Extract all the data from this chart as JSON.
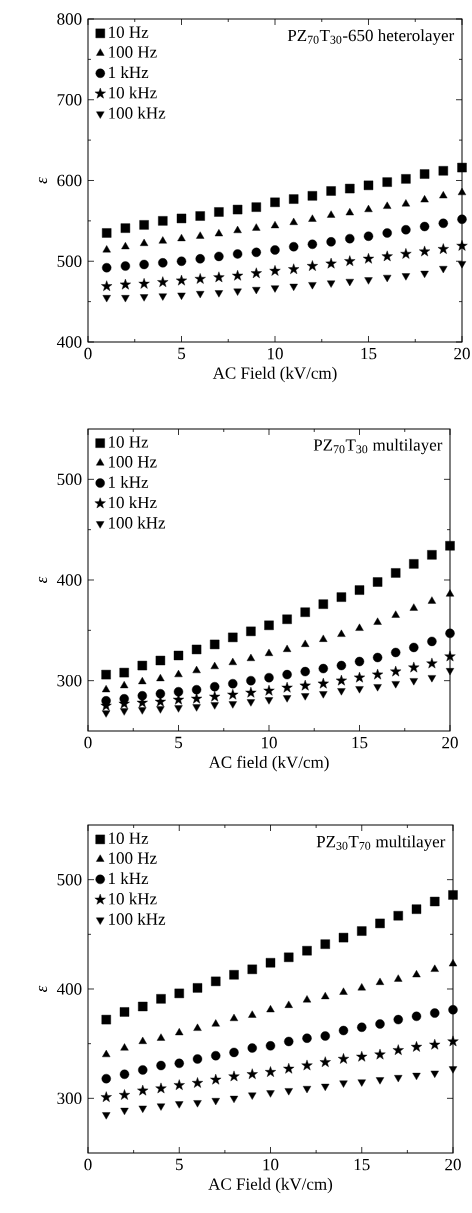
{
  "chart_data": [
    {
      "type": "scatter",
      "xlabel": "AC Field (kV/cm)",
      "ylabel": "ε",
      "xlim": [
        0,
        20
      ],
      "xticks": [
        0,
        5,
        10,
        15,
        20
      ],
      "ylim": [
        400,
        800
      ],
      "yticks": [
        400,
        500,
        600,
        700,
        800
      ],
      "legend": "top left",
      "annotations": [
        "PZ$_{70}$T$_{30}$-650 heterolayer"
      ],
      "x": [
        1,
        2,
        3,
        4,
        5,
        6,
        7,
        8,
        9,
        10,
        11,
        12,
        13,
        14,
        15,
        16,
        17,
        18,
        19,
        20
      ],
      "series": [
        {
          "name": "10 Hz",
          "color": "#000000",
          "marker": "square",
          "values": [
            535,
            541,
            545,
            550,
            553,
            556,
            561,
            564,
            567,
            573,
            577,
            581,
            587,
            590,
            594,
            598,
            602,
            608,
            612,
            616
          ]
        },
        {
          "name": "100 Hz",
          "color": "#000000",
          "marker": "triangle",
          "values": [
            514,
            518,
            522,
            525,
            528,
            531,
            534,
            538,
            541,
            544,
            548,
            552,
            557,
            560,
            564,
            568,
            571,
            576,
            581,
            585
          ]
        },
        {
          "name": "1 kHz",
          "color": "#000000",
          "marker": "circle",
          "values": [
            492,
            494,
            496,
            498,
            500,
            503,
            506,
            509,
            511,
            514,
            518,
            521,
            524,
            528,
            531,
            535,
            539,
            543,
            547,
            552
          ]
        },
        {
          "name": "10 kHz",
          "color": "#000000",
          "marker": "star",
          "values": [
            469,
            471,
            472,
            474,
            476,
            478,
            480,
            482,
            485,
            488,
            490,
            494,
            497,
            500,
            503,
            506,
            509,
            512,
            515,
            519
          ]
        },
        {
          "name": "100 kHz",
          "color": "#000000",
          "marker": "triangle-down",
          "values": [
            455,
            455,
            456,
            457,
            458,
            460,
            461,
            463,
            465,
            467,
            469,
            471,
            473,
            475,
            477,
            480,
            482,
            485,
            491,
            497
          ]
        }
      ]
    },
    {
      "type": "scatter",
      "xlabel": "AC field (kV/cm)",
      "ylabel": "ε",
      "xlim": [
        0,
        20
      ],
      "xticks": [
        0,
        5,
        10,
        15,
        20
      ],
      "ylim": [
        250,
        550
      ],
      "yticks": [
        300,
        400,
        500
      ],
      "legend": "top left",
      "annotations": [
        "PZ$_{70}$T$_{30}$ multilayer"
      ],
      "x": [
        1,
        2,
        3,
        4,
        5,
        6,
        7,
        8,
        9,
        10,
        11,
        12,
        13,
        14,
        15,
        16,
        17,
        18,
        19,
        20
      ],
      "series": [
        {
          "name": "10 Hz",
          "color": "#000000",
          "marker": "square",
          "values": [
            306,
            308,
            315,
            320,
            325,
            331,
            336,
            343,
            349,
            355,
            361,
            368,
            376,
            383,
            390,
            398,
            407,
            416,
            425,
            434
          ]
        },
        {
          "name": "100 Hz",
          "color": "#000000",
          "marker": "triangle",
          "values": [
            291,
            295,
            299,
            302,
            306,
            310,
            314,
            318,
            322,
            327,
            331,
            336,
            341,
            346,
            352,
            358,
            365,
            372,
            379,
            386
          ]
        },
        {
          "name": "1 kHz",
          "color": "#000000",
          "marker": "circle",
          "values": [
            280,
            282,
            285,
            287,
            289,
            291,
            294,
            297,
            300,
            303,
            306,
            309,
            312,
            315,
            319,
            323,
            328,
            333,
            339,
            347
          ]
        },
        {
          "name": "10 kHz",
          "color": "#000000",
          "marker": "star",
          "values": [
            275,
            277,
            278,
            279,
            281,
            282,
            284,
            286,
            288,
            290,
            293,
            295,
            297,
            300,
            303,
            306,
            309,
            313,
            317,
            324
          ]
        },
        {
          "name": "100 kHz",
          "color": "#000000",
          "marker": "triangle-down",
          "values": [
            268,
            270,
            271,
            272,
            273,
            274,
            276,
            277,
            279,
            281,
            283,
            285,
            287,
            290,
            292,
            294,
            297,
            300,
            303,
            310
          ]
        }
      ]
    },
    {
      "type": "scatter",
      "xlabel": "AC Field (kV/cm)",
      "ylabel": "ε",
      "xlim": [
        0,
        20
      ],
      "xticks": [
        0,
        5,
        10,
        15,
        20
      ],
      "ylim": [
        250,
        550
      ],
      "yticks": [
        300,
        400,
        500
      ],
      "legend": "top left",
      "annotations": [
        "PZ$_{30}$T$_{70}$ multilayer"
      ],
      "x": [
        1,
        2,
        3,
        4,
        5,
        6,
        7,
        8,
        9,
        10,
        11,
        12,
        13,
        14,
        15,
        16,
        17,
        18,
        19,
        20
      ],
      "series": [
        {
          "name": "10 Hz",
          "color": "#000000",
          "marker": "square",
          "values": [
            372,
            379,
            384,
            391,
            396,
            401,
            407,
            413,
            418,
            424,
            429,
            435,
            441,
            447,
            453,
            460,
            467,
            473,
            480,
            486
          ]
        },
        {
          "name": "100 Hz",
          "color": "#000000",
          "marker": "triangle",
          "values": [
            340,
            346,
            352,
            355,
            360,
            364,
            368,
            373,
            376,
            381,
            385,
            390,
            393,
            397,
            401,
            406,
            409,
            413,
            418,
            423
          ]
        },
        {
          "name": "1 kHz",
          "color": "#000000",
          "marker": "circle",
          "values": [
            318,
            322,
            326,
            330,
            332,
            336,
            339,
            342,
            346,
            348,
            352,
            355,
            357,
            362,
            365,
            368,
            372,
            375,
            378,
            381
          ]
        },
        {
          "name": "10 kHz",
          "color": "#000000",
          "marker": "star",
          "values": [
            301,
            303,
            307,
            309,
            312,
            314,
            317,
            320,
            322,
            324,
            327,
            330,
            333,
            336,
            338,
            340,
            344,
            347,
            349,
            352
          ]
        },
        {
          "name": "100 kHz",
          "color": "#000000",
          "marker": "triangle-down",
          "values": [
            285,
            289,
            291,
            293,
            295,
            296,
            298,
            300,
            303,
            305,
            307,
            309,
            311,
            314,
            315,
            317,
            319,
            321,
            323,
            327
          ]
        }
      ]
    }
  ]
}
